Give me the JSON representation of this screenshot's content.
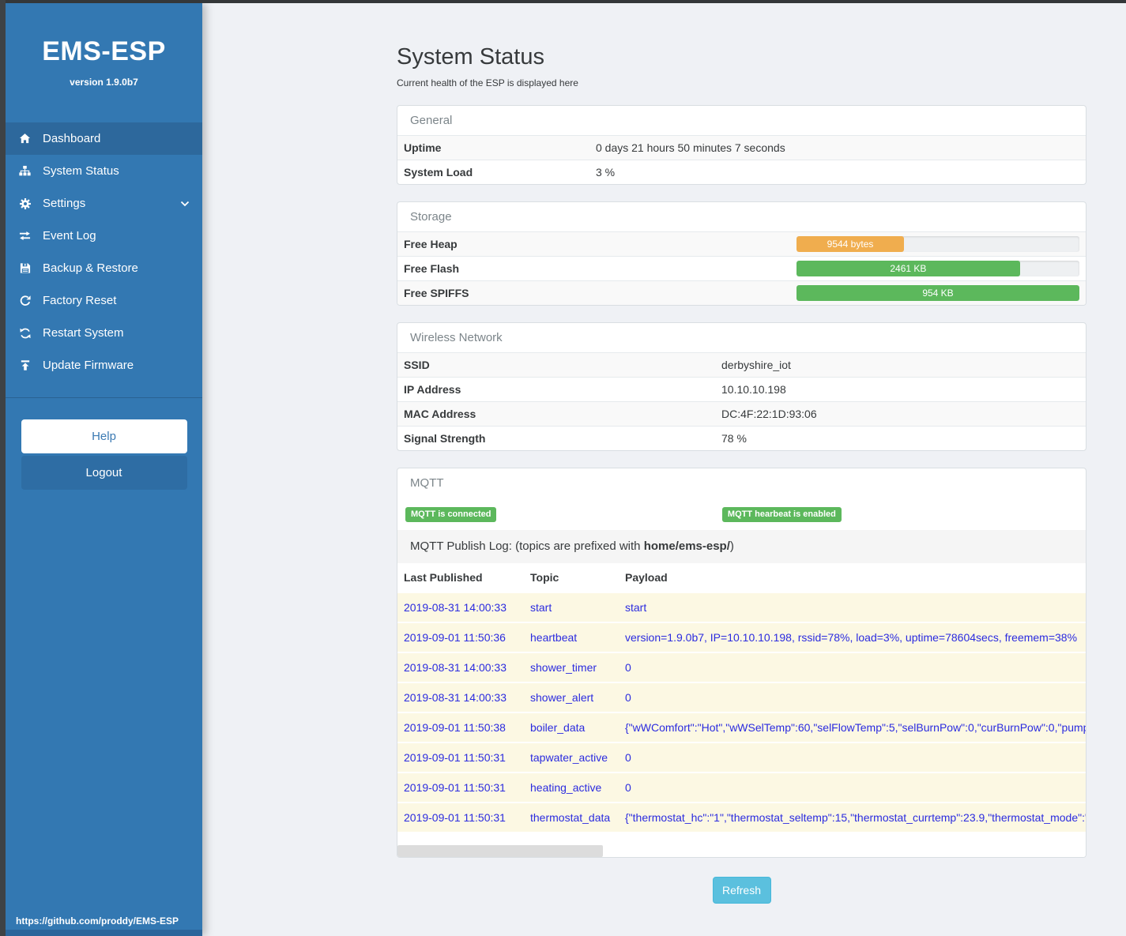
{
  "colors": {
    "sidebar_blue": "#3378b2",
    "sidebar_active_blue": "#2d689c",
    "logout_blue": "#2e6da4",
    "badge_green": "#5cb85c",
    "heap_orange": "#f0ad4e",
    "refresh_cyan": "#5bc0de",
    "log_row_cream": "#fcf8e3",
    "log_text_blue": "#2b2bdf"
  },
  "sidebar": {
    "title": "EMS-ESP",
    "version": "version 1.9.0b7",
    "items": [
      {
        "label": "Dashboard",
        "icon": "home-icon",
        "active": true
      },
      {
        "label": "System Status",
        "icon": "sitemap-icon",
        "active": false
      },
      {
        "label": "Settings",
        "icon": "gear-icon",
        "active": false,
        "chevron": "chevron-down-icon"
      },
      {
        "label": "Event Log",
        "icon": "exchange-icon",
        "active": false
      },
      {
        "label": "Backup & Restore",
        "icon": "save-icon",
        "active": false
      },
      {
        "label": "Factory Reset",
        "icon": "rotate-icon",
        "active": false
      },
      {
        "label": "Restart System",
        "icon": "refresh-icon",
        "active": false
      },
      {
        "label": "Update Firmware",
        "icon": "upload-icon",
        "active": false
      }
    ],
    "help_label": "Help",
    "logout_label": "Logout",
    "footer_link": "https://github.com/proddy/EMS-ESP"
  },
  "main": {
    "title": "System Status",
    "subtitle": "Current health of the ESP is displayed here",
    "refresh_label": "Refresh"
  },
  "panels": {
    "general": {
      "title": "General",
      "rows": [
        {
          "label": "Uptime",
          "value": "0 days 21 hours 50 minutes 7 seconds"
        },
        {
          "label": "System Load",
          "value": "3 %"
        }
      ]
    },
    "storage": {
      "title": "Storage",
      "rows": [
        {
          "label": "Free Heap",
          "bar_label": "9544 bytes",
          "percent": 38,
          "color": "#f0ad4e"
        },
        {
          "label": "Free Flash",
          "bar_label": "2461 KB",
          "percent": 79,
          "color": "#5cb85c"
        },
        {
          "label": "Free SPIFFS",
          "bar_label": "954 KB",
          "percent": 100,
          "color": "#5cb85c"
        }
      ]
    },
    "wireless": {
      "title": "Wireless Network",
      "rows": [
        {
          "label": "SSID",
          "value": "derbyshire_iot"
        },
        {
          "label": "IP Address",
          "value": "10.10.10.198"
        },
        {
          "label": "MAC Address",
          "value": "DC:4F:22:1D:93:06"
        },
        {
          "label": "Signal Strength",
          "value": "78 %"
        }
      ]
    },
    "mqtt": {
      "title": "MQTT",
      "badges": [
        "MQTT is connected",
        "MQTT hearbeat is enabled"
      ],
      "log_caption_prefix": "MQTT Publish Log: (topics are prefixed with ",
      "log_caption_bold": "home/ems-esp/",
      "log_caption_suffix": ")",
      "table": {
        "headers": [
          "Last Published",
          "Topic",
          "Payload"
        ],
        "rows": [
          [
            "2019-08-31 14:00:33",
            "start",
            "start"
          ],
          [
            "2019-09-01 11:50:36",
            "heartbeat",
            "version=1.9.0b7, IP=10.10.10.198, rssid=78%, load=3%, uptime=78604secs, freemem=38%"
          ],
          [
            "2019-08-31 14:00:33",
            "shower_timer",
            "0"
          ],
          [
            "2019-08-31 14:00:33",
            "shower_alert",
            "0"
          ],
          [
            "2019-09-01 11:50:38",
            "boiler_data",
            "{\"wWComfort\":\"Hot\",\"wWSelTemp\":60,\"selFlowTemp\":5,\"selBurnPow\":0,\"curBurnPow\":0,\"pump"
          ],
          [
            "2019-09-01 11:50:31",
            "tapwater_active",
            "0"
          ],
          [
            "2019-09-01 11:50:31",
            "heating_active",
            "0"
          ],
          [
            "2019-09-01 11:50:31",
            "thermostat_data",
            "{\"thermostat_hc\":\"1\",\"thermostat_seltemp\":15,\"thermostat_currtemp\":23.9,\"thermostat_mode\":\""
          ]
        ]
      }
    }
  }
}
